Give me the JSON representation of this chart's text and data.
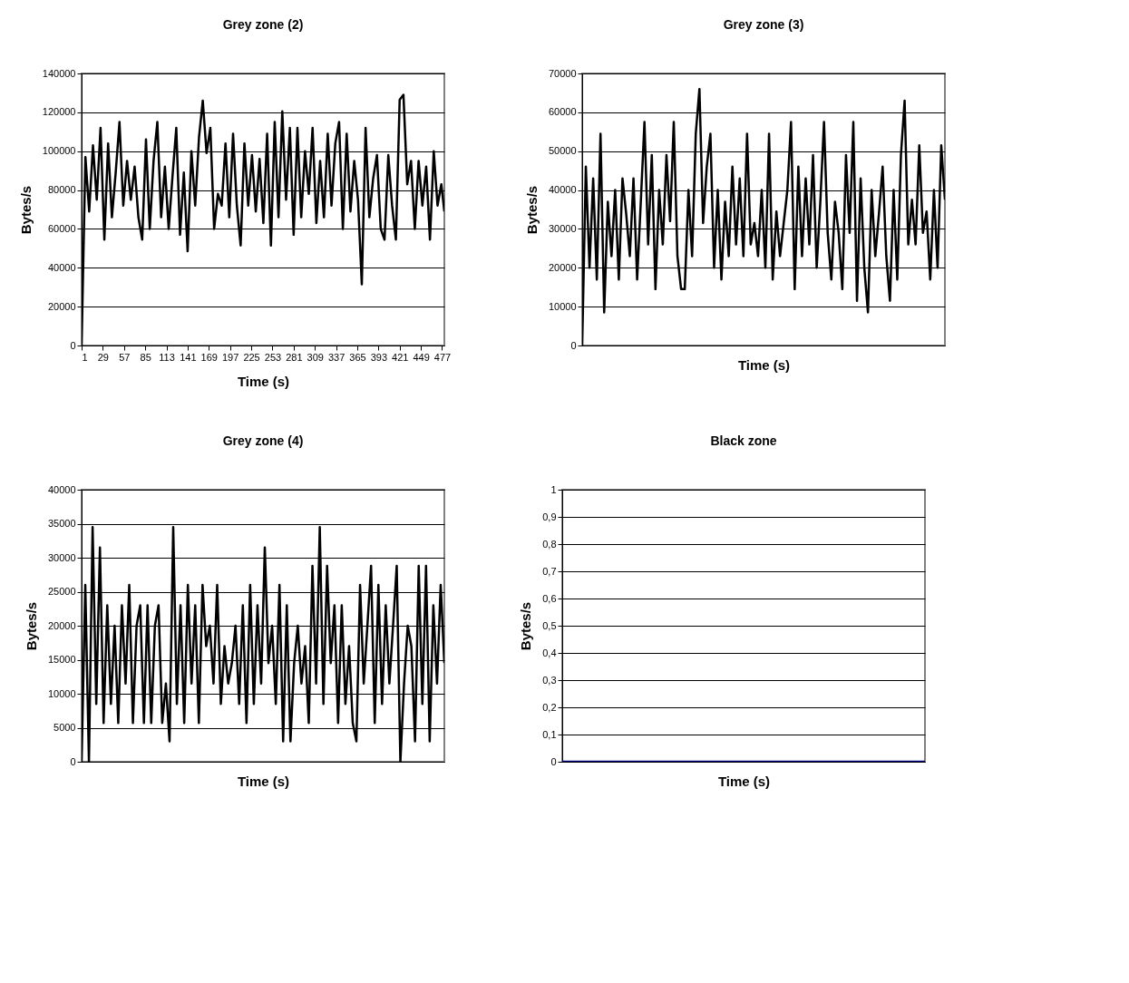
{
  "chart_data": [
    {
      "type": "line",
      "title": "Grey zone (2)",
      "xlabel": "Time (s)",
      "ylabel": "Bytes/s",
      "grid": "y",
      "line_style": "solid",
      "xlim": [
        1,
        480
      ],
      "xticks": [
        1,
        29,
        57,
        85,
        113,
        141,
        169,
        197,
        225,
        253,
        281,
        309,
        337,
        365,
        393,
        421,
        449,
        477
      ],
      "ylim": [
        0,
        140000
      ],
      "yticks": [
        0,
        20000,
        40000,
        60000,
        80000,
        100000,
        120000,
        140000
      ],
      "series": [
        {
          "color": "#000000",
          "x": [
            1,
            6,
            11,
            16,
            21,
            26,
            31,
            36,
            41,
            46,
            51,
            56,
            61,
            66,
            71,
            76,
            81,
            86,
            91,
            96,
            101,
            106,
            111,
            116,
            121,
            126,
            131,
            136,
            141,
            146,
            151,
            156,
            161,
            166,
            171,
            176,
            181,
            186,
            191,
            196,
            201,
            206,
            211,
            216,
            221,
            226,
            231,
            236,
            241,
            246,
            251,
            256,
            261,
            266,
            271,
            276,
            281,
            286,
            291,
            296,
            301,
            306,
            311,
            316,
            321,
            326,
            331,
            336,
            341,
            346,
            351,
            356,
            361,
            366,
            371,
            376,
            381,
            386,
            391,
            396,
            401,
            406,
            411,
            416,
            421,
            426,
            431,
            436,
            441,
            446,
            451,
            456,
            461,
            466,
            471,
            476,
            480
          ],
          "values": [
            0,
            97000,
            69000,
            103000,
            75000,
            112000,
            54500,
            104000,
            66000,
            89000,
            115000,
            72000,
            95000,
            75000,
            92000,
            66000,
            54500,
            106000,
            60000,
            95000,
            115000,
            66000,
            92000,
            60000,
            87000,
            112000,
            57000,
            89000,
            48500,
            100000,
            72000,
            107000,
            126000,
            99000,
            112000,
            60000,
            78000,
            72000,
            104000,
            66000,
            109000,
            72000,
            51500,
            104000,
            72000,
            98000,
            69000,
            96000,
            63000,
            109000,
            51500,
            115000,
            66000,
            120500,
            75000,
            112000,
            57000,
            112000,
            66000,
            100000,
            78000,
            112000,
            63000,
            95000,
            66000,
            109000,
            72000,
            104000,
            115000,
            60000,
            109000,
            69000,
            95000,
            75000,
            31500,
            112000,
            66000,
            86000,
            98000,
            60000,
            54500,
            98000,
            72000,
            54500,
            126500,
            129000,
            83000,
            95000,
            60000,
            95000,
            72000,
            92000,
            54500,
            100000,
            72000,
            83000,
            69000
          ]
        }
      ]
    },
    {
      "type": "line",
      "title": "Grey zone (3)",
      "xlabel": "Time (s)",
      "ylabel": "Bytes/s",
      "grid": "y",
      "line_style": "solid",
      "tick_labels": "y",
      "categories": [
        null,
        null,
        null,
        null,
        null,
        null,
        null,
        null,
        null,
        null,
        null,
        null,
        null,
        null,
        null,
        null,
        null,
        null,
        null,
        null,
        null,
        null,
        null,
        null,
        null,
        null,
        null,
        null,
        null,
        null,
        null,
        null,
        null,
        null,
        null,
        null,
        null,
        null,
        null,
        null,
        null,
        null,
        null,
        null,
        null,
        null,
        null,
        null,
        null,
        null,
        null,
        null,
        null,
        null,
        null,
        null,
        null,
        null,
        null,
        null,
        null,
        null,
        null,
        null,
        null,
        null,
        null,
        null,
        null,
        null,
        null,
        null,
        null,
        null,
        null,
        null,
        null,
        null,
        null,
        null,
        null,
        null,
        null,
        null,
        null,
        null,
        null,
        null,
        null,
        null,
        null,
        null,
        null,
        null,
        null,
        null,
        null,
        null,
        null,
        null
      ],
      "ylim": [
        0,
        70000
      ],
      "yticks": [
        0,
        10000,
        20000,
        30000,
        40000,
        50000,
        60000,
        70000
      ],
      "series": [
        {
          "color": "#000000",
          "values": [
            0,
            46000,
            20000,
            43000,
            17000,
            54500,
            8500,
            37000,
            23000,
            40000,
            17000,
            43000,
            34000,
            23000,
            43000,
            17000,
            37000,
            57500,
            26000,
            49000,
            14500,
            40000,
            26000,
            49000,
            32000,
            57500,
            23000,
            14500,
            14500,
            40000,
            23000,
            54500,
            66000,
            31500,
            46000,
            54500,
            20000,
            40000,
            17000,
            37000,
            23000,
            46000,
            26000,
            43000,
            23000,
            54500,
            26000,
            31500,
            23000,
            40000,
            20000,
            54500,
            17000,
            34500,
            23000,
            31500,
            40000,
            57500,
            14500,
            46000,
            23000,
            43000,
            26000,
            49000,
            20000,
            37000,
            57500,
            29000,
            17000,
            37000,
            29000,
            14500,
            49000,
            29000,
            57500,
            11500,
            43000,
            20000,
            8500,
            40000,
            23000,
            34000,
            46000,
            23000,
            11500,
            40000,
            17000,
            49000,
            63000,
            26000,
            37500,
            26000,
            51500,
            29000,
            34500,
            17000,
            40000,
            20000,
            51500,
            37500
          ]
        }
      ]
    },
    {
      "type": "line",
      "title": "Grey zone (4)",
      "xlabel": "Time (s)",
      "ylabel": "Bytes/s",
      "grid": "y",
      "line_style": "solid",
      "tick_labels": "y",
      "categories": [
        null,
        null,
        null,
        null,
        null,
        null,
        null,
        null,
        null,
        null,
        null,
        null,
        null,
        null,
        null,
        null,
        null,
        null,
        null,
        null,
        null,
        null,
        null,
        null,
        null,
        null,
        null,
        null,
        null,
        null,
        null,
        null,
        null,
        null,
        null,
        null,
        null,
        null,
        null,
        null,
        null,
        null,
        null,
        null,
        null,
        null,
        null,
        null,
        null,
        null,
        null,
        null,
        null,
        null,
        null,
        null,
        null,
        null,
        null,
        null,
        null,
        null,
        null,
        null,
        null,
        null,
        null,
        null,
        null,
        null,
        null,
        null,
        null,
        null,
        null,
        null,
        null,
        null,
        null,
        null,
        null,
        null,
        null,
        null,
        null,
        null,
        null,
        null,
        null,
        null,
        null,
        null,
        null,
        null,
        null,
        null,
        null,
        null,
        null,
        null
      ],
      "ylim": [
        0,
        40000
      ],
      "yticks": [
        0,
        5000,
        10000,
        15000,
        20000,
        25000,
        30000,
        35000,
        40000
      ],
      "series": [
        {
          "color": "#000000",
          "values": [
            0,
            26000,
            0,
            34500,
            8500,
            31500,
            5700,
            23000,
            8500,
            20000,
            5700,
            23000,
            11500,
            26000,
            5700,
            20000,
            23000,
            5700,
            23000,
            5700,
            20000,
            23000,
            5700,
            11500,
            3000,
            34500,
            8500,
            23000,
            5700,
            26000,
            11500,
            23000,
            5700,
            26000,
            17000,
            20000,
            11500,
            26000,
            8500,
            17000,
            11500,
            14500,
            20000,
            8500,
            23000,
            5700,
            26000,
            8500,
            23000,
            11500,
            31500,
            14500,
            20000,
            8500,
            26000,
            3000,
            23000,
            3000,
            14500,
            20000,
            11500,
            17000,
            5700,
            28800,
            11500,
            34500,
            8500,
            28800,
            14500,
            23000,
            5700,
            23000,
            8500,
            17000,
            5700,
            3000,
            26000,
            11500,
            20000,
            28800,
            5700,
            26000,
            8500,
            23000,
            11500,
            20000,
            28800,
            0,
            11500,
            20000,
            17000,
            3000,
            28800,
            8500,
            28800,
            3000,
            23000,
            11500,
            26000,
            14500
          ]
        }
      ]
    },
    {
      "type": "line",
      "title": "Black zone",
      "xlabel": "Time (s)",
      "ylabel": "Bytes/s",
      "grid": "y",
      "line_style": "solid",
      "tick_labels": "y",
      "categories": [
        null,
        null,
        null,
        null,
        null,
        null,
        null,
        null,
        null,
        null
      ],
      "ylim": [
        0,
        1
      ],
      "yticks": [
        0,
        {
          "value": 0.1,
          "label": "0,1"
        },
        {
          "value": 0.2,
          "label": "0,2"
        },
        {
          "value": 0.3,
          "label": "0,3"
        },
        {
          "value": 0.4,
          "label": "0,4"
        },
        {
          "value": 0.5,
          "label": "0,5"
        },
        {
          "value": 0.6,
          "label": "0,6"
        },
        {
          "value": 0.7,
          "label": "0,7"
        },
        {
          "value": 0.8,
          "label": "0,8"
        },
        {
          "value": 0.9,
          "label": "0,9"
        },
        1
      ],
      "series": [
        {
          "color": "#000080",
          "values": [
            0,
            0,
            0,
            0,
            0,
            0,
            0,
            0,
            0,
            0
          ]
        }
      ]
    }
  ]
}
